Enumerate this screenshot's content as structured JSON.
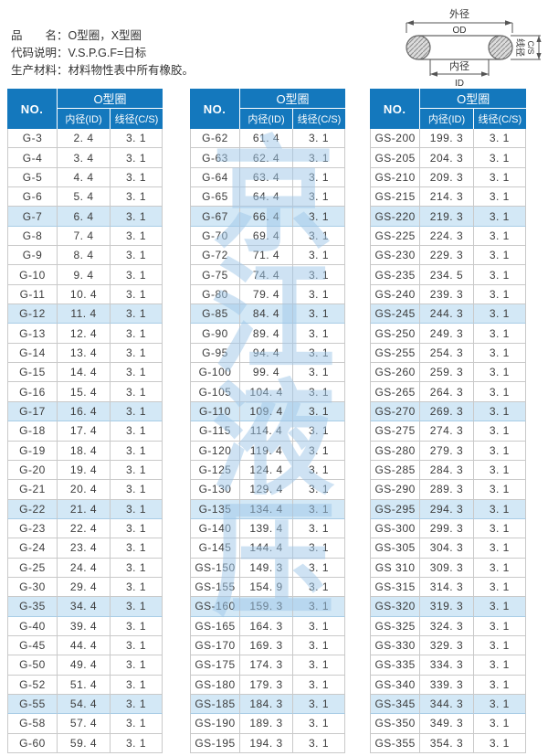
{
  "info": {
    "lines": [
      "品　　名：O型圈，X型圈",
      "代码说明：V.S.P.G.F=日标",
      "生产材料：材料物性表中所有橡胶。"
    ]
  },
  "diagram": {
    "outer_label": "外径",
    "outer_abbr": "OD",
    "inner_label": "内径",
    "inner_abbr": "ID",
    "cs_label": "线径",
    "cs_abbr": "C/S"
  },
  "watermark": {
    "chars": [
      "京",
      "江",
      "液",
      "压"
    ]
  },
  "table_headers": {
    "no": "NO.",
    "group": "O型圈",
    "id": "内径(ID)",
    "cs": "线径(C/S)"
  },
  "colors": {
    "header-blue": "#1478bd",
    "row-highlight": "#d3e8f6",
    "grid-line": "#c9c9c9",
    "watermark": "#9ec7e9"
  },
  "highlight_row_indexes": [
    4,
    9,
    14,
    19,
    24,
    29
  ],
  "tables": [
    {
      "rows": [
        [
          "G-3",
          "2. 4",
          "3. 1"
        ],
        [
          "G-4",
          "3. 4",
          "3. 1"
        ],
        [
          "G-5",
          "4. 4",
          "3. 1"
        ],
        [
          "G-6",
          "5. 4",
          "3. 1"
        ],
        [
          "G-7",
          "6. 4",
          "3. 1"
        ],
        [
          "G-8",
          "7. 4",
          "3. 1"
        ],
        [
          "G-9",
          "8. 4",
          "3. 1"
        ],
        [
          "G-10",
          "9. 4",
          "3. 1"
        ],
        [
          "G-11",
          "10. 4",
          "3. 1"
        ],
        [
          "G-12",
          "11. 4",
          "3. 1"
        ],
        [
          "G-13",
          "12. 4",
          "3. 1"
        ],
        [
          "G-14",
          "13. 4",
          "3. 1"
        ],
        [
          "G-15",
          "14. 4",
          "3. 1"
        ],
        [
          "G-16",
          "15. 4",
          "3. 1"
        ],
        [
          "G-17",
          "16. 4",
          "3. 1"
        ],
        [
          "G-18",
          "17. 4",
          "3. 1"
        ],
        [
          "G-19",
          "18. 4",
          "3. 1"
        ],
        [
          "G-20",
          "19. 4",
          "3. 1"
        ],
        [
          "G-21",
          "20. 4",
          "3. 1"
        ],
        [
          "G-22",
          "21. 4",
          "3. 1"
        ],
        [
          "G-23",
          "22. 4",
          "3. 1"
        ],
        [
          "G-24",
          "23. 4",
          "3. 1"
        ],
        [
          "G-25",
          "24. 4",
          "3. 1"
        ],
        [
          "G-30",
          "29. 4",
          "3. 1"
        ],
        [
          "G-35",
          "34. 4",
          "3. 1"
        ],
        [
          "G-40",
          "39. 4",
          "3. 1"
        ],
        [
          "G-45",
          "44. 4",
          "3. 1"
        ],
        [
          "G-50",
          "49. 4",
          "3. 1"
        ],
        [
          "G-52",
          "51. 4",
          "3. 1"
        ],
        [
          "G-55",
          "54. 4",
          "3. 1"
        ],
        [
          "G-58",
          "57. 4",
          "3. 1"
        ],
        [
          "G-60",
          "59. 4",
          "3. 1"
        ]
      ]
    },
    {
      "rows": [
        [
          "G-62",
          "61. 4",
          "3. 1"
        ],
        [
          "G-63",
          "62. 4",
          "3. 1"
        ],
        [
          "G-64",
          "63. 4",
          "3. 1"
        ],
        [
          "G-65",
          "64. 4",
          "3. 1"
        ],
        [
          "G-67",
          "66. 4",
          "3. 1"
        ],
        [
          "G-70",
          "69. 4",
          "3. 1"
        ],
        [
          "G-72",
          "71. 4",
          "3. 1"
        ],
        [
          "G-75",
          "74. 4",
          "3. 1"
        ],
        [
          "G-80",
          "79. 4",
          "3. 1"
        ],
        [
          "G-85",
          "84. 4",
          "3. 1"
        ],
        [
          "G-90",
          "89. 4",
          "3. 1"
        ],
        [
          "G-95",
          "94. 4",
          "3. 1"
        ],
        [
          "G-100",
          "99. 4",
          "3. 1"
        ],
        [
          "G-105",
          "104. 4",
          "3. 1"
        ],
        [
          "G-110",
          "109. 4",
          "3. 1"
        ],
        [
          "G-115",
          "114. 4",
          "3. 1"
        ],
        [
          "G-120",
          "119. 4",
          "3. 1"
        ],
        [
          "G-125",
          "124. 4",
          "3. 1"
        ],
        [
          "G-130",
          "129. 4",
          "3. 1"
        ],
        [
          "G-135",
          "134. 4",
          "3. 1"
        ],
        [
          "G-140",
          "139. 4",
          "3. 1"
        ],
        [
          "G-145",
          "144. 4",
          "3. 1"
        ],
        [
          "GS-150",
          "149. 3",
          "3. 1"
        ],
        [
          "GS-155",
          "154. 9",
          "3. 1"
        ],
        [
          "GS-160",
          "159. 3",
          "3. 1"
        ],
        [
          "GS-165",
          "164. 3",
          "3. 1"
        ],
        [
          "GS-170",
          "169. 3",
          "3. 1"
        ],
        [
          "GS-175",
          "174. 3",
          "3. 1"
        ],
        [
          "GS-180",
          "179. 3",
          "3. 1"
        ],
        [
          "GS-185",
          "184. 3",
          "3. 1"
        ],
        [
          "GS-190",
          "189. 3",
          "3. 1"
        ],
        [
          "GS-195",
          "194. 3",
          "3. 1"
        ]
      ]
    },
    {
      "rows": [
        [
          "GS-200",
          "199. 3",
          "3. 1"
        ],
        [
          "GS-205",
          "204. 3",
          "3. 1"
        ],
        [
          "GS-210",
          "209. 3",
          "3. 1"
        ],
        [
          "GS-215",
          "214. 3",
          "3. 1"
        ],
        [
          "GS-220",
          "219. 3",
          "3. 1"
        ],
        [
          "GS-225",
          "224. 3",
          "3. 1"
        ],
        [
          "GS-230",
          "229. 3",
          "3. 1"
        ],
        [
          "GS-235",
          "234. 5",
          "3. 1"
        ],
        [
          "GS-240",
          "239. 3",
          "3. 1"
        ],
        [
          "GS-245",
          "244. 3",
          "3. 1"
        ],
        [
          "GS-250",
          "249. 3",
          "3. 1"
        ],
        [
          "GS-255",
          "254. 3",
          "3. 1"
        ],
        [
          "GS-260",
          "259. 3",
          "3. 1"
        ],
        [
          "GS-265",
          "264. 3",
          "3. 1"
        ],
        [
          "GS-270",
          "269. 3",
          "3. 1"
        ],
        [
          "GS-275",
          "274. 3",
          "3. 1"
        ],
        [
          "GS-280",
          "279. 3",
          "3. 1"
        ],
        [
          "GS-285",
          "284. 3",
          "3. 1"
        ],
        [
          "GS-290",
          "289. 3",
          "3. 1"
        ],
        [
          "GS-295",
          "294. 3",
          "3. 1"
        ],
        [
          "GS-300",
          "299. 3",
          "3. 1"
        ],
        [
          "GS-305",
          "304. 3",
          "3. 1"
        ],
        [
          "GS 310",
          "309. 3",
          "3. 1"
        ],
        [
          "GS-315",
          "314. 3",
          "3. 1"
        ],
        [
          "GS-320",
          "319. 3",
          "3. 1"
        ],
        [
          "GS-325",
          "324. 3",
          "3. 1"
        ],
        [
          "GS-330",
          "329. 3",
          "3. 1"
        ],
        [
          "GS-335",
          "334. 3",
          "3. 1"
        ],
        [
          "GS-340",
          "339. 3",
          "3. 1"
        ],
        [
          "GS-345",
          "344. 3",
          "3. 1"
        ],
        [
          "GS-350",
          "349. 3",
          "3. 1"
        ],
        [
          "GS-355",
          "354. 3",
          "3. 1"
        ]
      ]
    }
  ]
}
